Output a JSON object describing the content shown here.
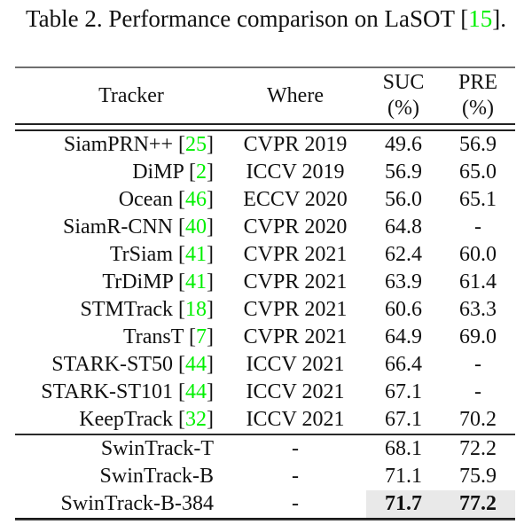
{
  "colors": {
    "citation_green": "#00f000",
    "highlight_gray": "#e9e9e9",
    "text": "#111111"
  },
  "caption": {
    "parts": [
      {
        "text": "Table 2. Performance comparison on LaSOT ["
      },
      {
        "text": "15",
        "citation": true
      },
      {
        "text": "]."
      }
    ]
  },
  "table": {
    "header": [
      {
        "label": "Tracker",
        "sub": null
      },
      {
        "label": "Where",
        "sub": null
      },
      {
        "label": "SUC",
        "sub": "(%)"
      },
      {
        "label": "PRE",
        "sub": "(%)"
      }
    ],
    "sections": [
      {
        "name": "published-trackers",
        "rows": [
          {
            "tracker_parts": [
              {
                "text": "SiamPRN++ ["
              },
              {
                "text": "25",
                "citation": true
              },
              {
                "text": "]"
              }
            ],
            "where": "CVPR 2019",
            "suc": "49.6",
            "pre": "56.9",
            "bold": false,
            "highlight": false
          },
          {
            "tracker_parts": [
              {
                "text": "DiMP ["
              },
              {
                "text": "2",
                "citation": true
              },
              {
                "text": "]"
              }
            ],
            "where": "ICCV 2019",
            "suc": "56.9",
            "pre": "65.0",
            "bold": false,
            "highlight": false
          },
          {
            "tracker_parts": [
              {
                "text": "Ocean ["
              },
              {
                "text": "46",
                "citation": true
              },
              {
                "text": "]"
              }
            ],
            "where": "ECCV 2020",
            "suc": "56.0",
            "pre": "65.1",
            "bold": false,
            "highlight": false
          },
          {
            "tracker_parts": [
              {
                "text": "SiamR-CNN ["
              },
              {
                "text": "40",
                "citation": true
              },
              {
                "text": "]"
              }
            ],
            "where": "CVPR 2020",
            "suc": "64.8",
            "pre": "-",
            "bold": false,
            "highlight": false
          },
          {
            "tracker_parts": [
              {
                "text": "TrSiam ["
              },
              {
                "text": "41",
                "citation": true
              },
              {
                "text": "]"
              }
            ],
            "where": "CVPR 2021",
            "suc": "62.4",
            "pre": "60.0",
            "bold": false,
            "highlight": false
          },
          {
            "tracker_parts": [
              {
                "text": "TrDiMP ["
              },
              {
                "text": "41",
                "citation": true
              },
              {
                "text": "]"
              }
            ],
            "where": "CVPR 2021",
            "suc": "63.9",
            "pre": "61.4",
            "bold": false,
            "highlight": false
          },
          {
            "tracker_parts": [
              {
                "text": "STMTrack ["
              },
              {
                "text": "18",
                "citation": true
              },
              {
                "text": "]"
              }
            ],
            "where": "CVPR 2021",
            "suc": "60.6",
            "pre": "63.3",
            "bold": false,
            "highlight": false
          },
          {
            "tracker_parts": [
              {
                "text": "TransT ["
              },
              {
                "text": "7",
                "citation": true
              },
              {
                "text": "]"
              }
            ],
            "where": "CVPR 2021",
            "suc": "64.9",
            "pre": "69.0",
            "bold": false,
            "highlight": false
          },
          {
            "tracker_parts": [
              {
                "text": "STARK-ST50 ["
              },
              {
                "text": "44",
                "citation": true
              },
              {
                "text": "]"
              }
            ],
            "where": "ICCV 2021",
            "suc": "66.4",
            "pre": "-",
            "bold": false,
            "highlight": false
          },
          {
            "tracker_parts": [
              {
                "text": "STARK-ST101 ["
              },
              {
                "text": "44",
                "citation": true
              },
              {
                "text": "]"
              }
            ],
            "where": "ICCV 2021",
            "suc": "67.1",
            "pre": "-",
            "bold": false,
            "highlight": false
          },
          {
            "tracker_parts": [
              {
                "text": "KeepTrack ["
              },
              {
                "text": "32",
                "citation": true
              },
              {
                "text": "]"
              }
            ],
            "where": "ICCV 2021",
            "suc": "67.1",
            "pre": "70.2",
            "bold": false,
            "highlight": false
          }
        ]
      },
      {
        "name": "swintrack-ours",
        "rows": [
          {
            "tracker_parts": [
              {
                "text": "SwinTrack-T"
              }
            ],
            "where": "-",
            "suc": "68.1",
            "pre": "72.2",
            "bold": false,
            "highlight": false
          },
          {
            "tracker_parts": [
              {
                "text": "SwinTrack-B"
              }
            ],
            "where": "-",
            "suc": "71.1",
            "pre": "75.9",
            "bold": false,
            "highlight": false
          },
          {
            "tracker_parts": [
              {
                "text": "SwinTrack-B-384"
              }
            ],
            "where": "-",
            "suc": "71.7",
            "pre": "77.2",
            "bold": true,
            "highlight": true
          }
        ]
      }
    ]
  }
}
